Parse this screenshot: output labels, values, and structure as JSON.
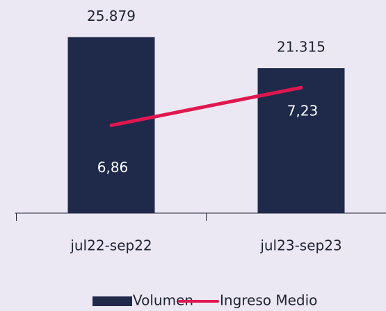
{
  "chart_data": {
    "type": "bar",
    "categories": [
      "jul22-sep22",
      "jul23-sep23"
    ],
    "series": [
      {
        "name": "Volumen",
        "type": "bar",
        "color": "#1f2a4b",
        "values": [
          25879,
          21315
        ],
        "value_labels": [
          "25.879",
          "21.315"
        ]
      },
      {
        "name": "Ingreso Medio",
        "type": "line",
        "axis": "y2",
        "color": "#e0174f",
        "values": [
          6.86,
          7.23
        ],
        "value_labels": [
          "6,86",
          "7,23"
        ]
      }
    ],
    "ylim": [
      0,
      30000
    ],
    "y2lim": [
      6,
      8
    ],
    "legend": "bottom"
  }
}
